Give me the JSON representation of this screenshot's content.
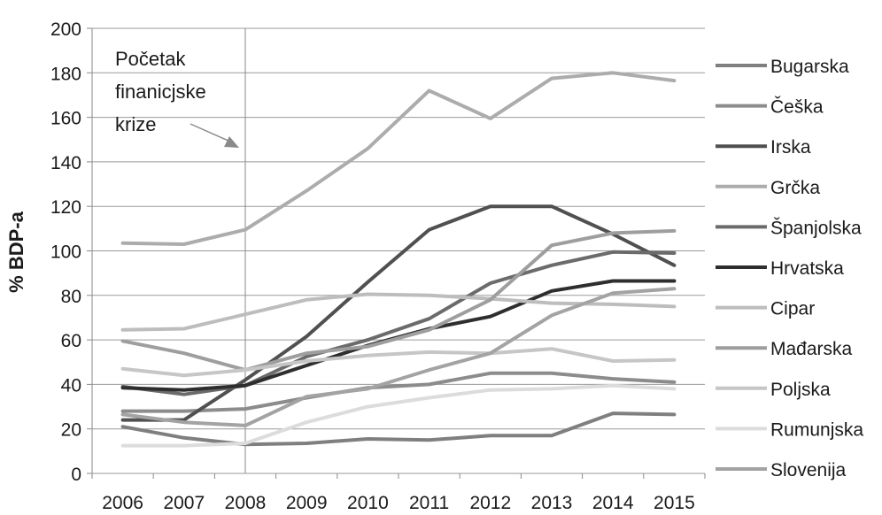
{
  "chart_data": {
    "type": "line",
    "ylabel": "% BDP-a",
    "ylim": [
      0,
      200
    ],
    "ytick_values": [
      0,
      20,
      40,
      60,
      80,
      100,
      120,
      140,
      160,
      180,
      200
    ],
    "grid": true,
    "legend_placement": "right",
    "categories": [
      "2006",
      "2007",
      "2008",
      "2009",
      "2010",
      "2011",
      "2012",
      "2013",
      "2014",
      "2015"
    ],
    "annotation": {
      "lines": [
        "Početak",
        "finanicjske",
        "krize"
      ],
      "x_category": "2008"
    },
    "series": [
      {
        "name": "Bugarska",
        "color": "#7f7f7f",
        "values": [
          21,
          16,
          13,
          13.5,
          15.5,
          15,
          17,
          17,
          27,
          26.5
        ]
      },
      {
        "name": "Češka",
        "color": "#8c8c8c",
        "values": [
          28,
          28,
          29,
          34,
          38.5,
          40,
          45,
          45,
          42.5,
          41
        ]
      },
      {
        "name": "Irska",
        "color": "#505050",
        "values": [
          24,
          24,
          42,
          61.5,
          86,
          109.5,
          120,
          120,
          107.5,
          93.5
        ]
      },
      {
        "name": "Grčka",
        "color": "#acacac",
        "values": [
          103.5,
          103,
          109.5,
          127,
          146,
          172,
          159.5,
          177.5,
          180,
          176.5
        ]
      },
      {
        "name": "Španjolska",
        "color": "#6b6b6b",
        "values": [
          39,
          35.5,
          39.5,
          52.5,
          60,
          69.5,
          85.5,
          93.5,
          99.5,
          99
        ]
      },
      {
        "name": "Hrvatska",
        "color": "#2e2e2e",
        "values": [
          38.5,
          37.5,
          39.5,
          48.5,
          57.5,
          65,
          70.5,
          82,
          86.5,
          86.5
        ]
      },
      {
        "name": "Cipar",
        "color": "#bdbdbd",
        "values": [
          64.5,
          65,
          71.5,
          78,
          80.5,
          80,
          78.5,
          76.5,
          76,
          75
        ]
      },
      {
        "name": "Mađarska",
        "color": "#9e9e9e",
        "values": [
          59.5,
          54,
          46.5,
          54,
          57,
          64.5,
          78,
          102.5,
          108,
          109
        ]
      },
      {
        "name": "Poljska",
        "color": "#c6c6c6",
        "values": [
          47,
          44,
          46.5,
          50.5,
          53,
          54.5,
          54,
          56,
          50.5,
          51
        ]
      },
      {
        "name": "Rumunjska",
        "color": "#dcdcdc",
        "values": [
          12.5,
          12.5,
          13.5,
          23,
          30,
          34,
          37.5,
          38,
          39.5,
          38
        ]
      },
      {
        "name": "Slovenija",
        "color": "#a3a3a3",
        "values": [
          26.5,
          23,
          21.5,
          34.5,
          38,
          46.5,
          54,
          71,
          81,
          83
        ]
      }
    ]
  }
}
